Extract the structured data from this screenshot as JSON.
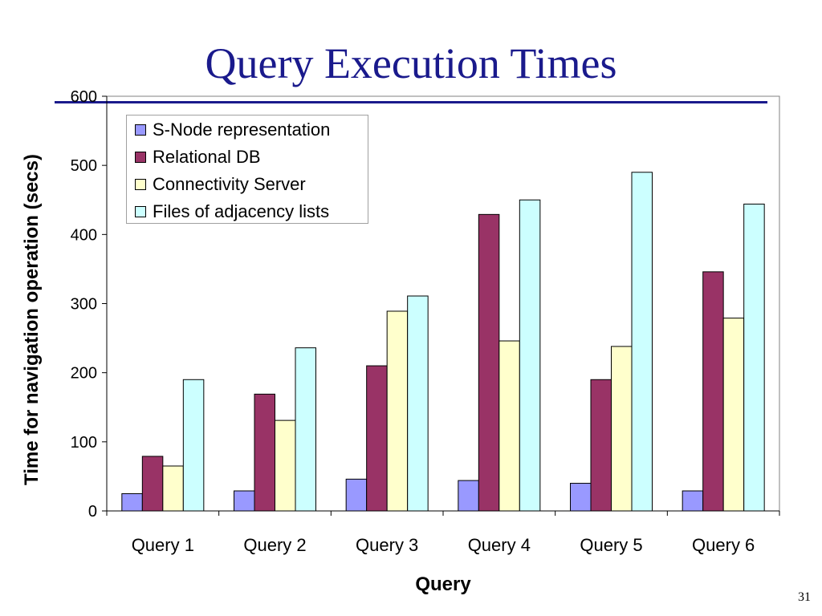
{
  "slide": {
    "title": "Query Execution Times",
    "page_number": "31"
  },
  "colors": {
    "title": "#1a1a8c",
    "series": [
      "#9999ff",
      "#993366",
      "#ffffcc",
      "#ccffff"
    ]
  },
  "chart_data": {
    "type": "bar",
    "xlabel": "Query",
    "ylabel": "Time for navigation operation (secs)",
    "ylim": [
      0,
      600
    ],
    "yticks": [
      0,
      100,
      200,
      300,
      400,
      500,
      600
    ],
    "categories": [
      "Query 1",
      "Query 2",
      "Query 3",
      "Query 4",
      "Query 5",
      "Query 6"
    ],
    "grid": false,
    "legend_position": "top-left",
    "series": [
      {
        "name": "S-Node representation",
        "values": [
          25,
          29,
          46,
          44,
          40,
          29
        ]
      },
      {
        "name": "Relational DB",
        "values": [
          79,
          169,
          210,
          429,
          190,
          346
        ]
      },
      {
        "name": "Connectivity Server",
        "values": [
          65,
          131,
          289,
          246,
          238,
          279
        ]
      },
      {
        "name": "Files of adjacency lists",
        "values": [
          190,
          236,
          311,
          450,
          490,
          444
        ]
      }
    ]
  }
}
